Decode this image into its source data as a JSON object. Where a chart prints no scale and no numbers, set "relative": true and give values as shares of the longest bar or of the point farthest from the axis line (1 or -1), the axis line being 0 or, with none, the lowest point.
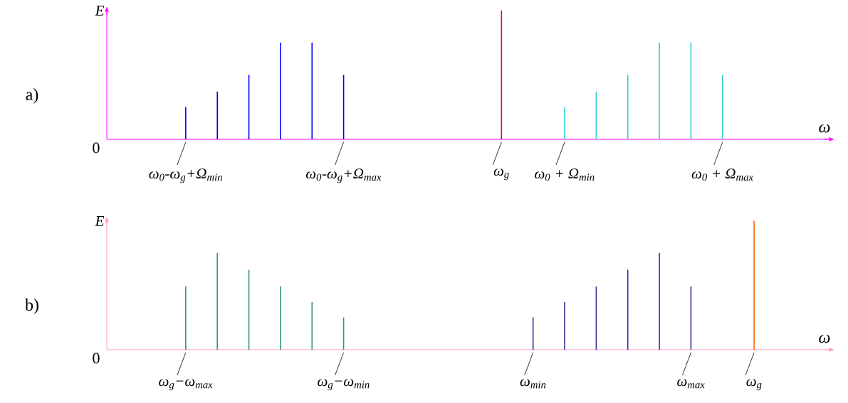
{
  "chart_data": [
    {
      "type": "bar",
      "relative": true,
      "title": "a)",
      "xlabel": "ω",
      "ylabel": "E",
      "annotations": [
        "0"
      ],
      "categories": [
        null,
        null,
        "ω$_{0}$-ω$_{g}$+Ω$_{min}$",
        null,
        null,
        null,
        null,
        "ω$_{0}$-ω$_{g}$+Ω$_{max}$",
        null,
        null,
        null,
        null,
        "ω$_{g}$",
        null,
        "ω$_{0}$ + Ω$_{min}$",
        null,
        null,
        null,
        null,
        "ω$_{0}$ + Ω$_{max}$",
        null,
        null,
        null
      ],
      "series": [
        {
          "color": "#0000ff",
          "values": [
            null,
            null,
            0.25,
            0.37,
            0.5,
            0.75,
            0.75,
            0.5,
            null,
            null,
            null,
            null,
            null,
            null,
            null,
            null,
            null,
            null,
            null,
            null,
            null,
            null,
            null
          ]
        },
        {
          "color": "#ff0000",
          "values": [
            null,
            null,
            null,
            null,
            null,
            null,
            null,
            null,
            null,
            null,
            null,
            null,
            1,
            null,
            null,
            null,
            null,
            null,
            null,
            null,
            null,
            null,
            null
          ]
        },
        {
          "color": "#33cccc",
          "values": [
            null,
            null,
            null,
            null,
            null,
            null,
            null,
            null,
            null,
            null,
            null,
            null,
            null,
            null,
            0.25,
            0.37,
            0.5,
            0.75,
            0.75,
            0.5,
            null,
            null,
            null
          ]
        }
      ]
    },
    {
      "type": "bar",
      "relative": true,
      "title": "b)",
      "xlabel": "ω",
      "ylabel": "E",
      "annotations": [
        "0"
      ],
      "categories": [
        null,
        null,
        "ω$_{g}$−ω$_{max}$",
        null,
        null,
        null,
        null,
        "ω$_{g}$−ω$_{min}$",
        null,
        null,
        null,
        null,
        null,
        "ω$_{min}$",
        null,
        null,
        null,
        null,
        "ω$_{max}$",
        null,
        "ω$_{g}$",
        null,
        null
      ],
      "series": [
        {
          "color": "#339966",
          "values": [
            null,
            null,
            0.49,
            0.75,
            0.62,
            0.49,
            0.37,
            0.25,
            null,
            null,
            null,
            null,
            null,
            null,
            null,
            null,
            null,
            null,
            null,
            null,
            null,
            null,
            null
          ]
        },
        {
          "color": "#333399",
          "values": [
            null,
            null,
            null,
            null,
            null,
            null,
            null,
            null,
            null,
            null,
            null,
            null,
            null,
            0.25,
            0.37,
            0.49,
            0.62,
            0.75,
            0.49,
            null,
            null,
            null,
            null
          ]
        },
        {
          "color": "#ff6600",
          "values": [
            null,
            null,
            null,
            null,
            null,
            null,
            null,
            null,
            null,
            null,
            null,
            null,
            null,
            null,
            null,
            null,
            null,
            null,
            null,
            null,
            1,
            null,
            null
          ]
        }
      ]
    }
  ]
}
